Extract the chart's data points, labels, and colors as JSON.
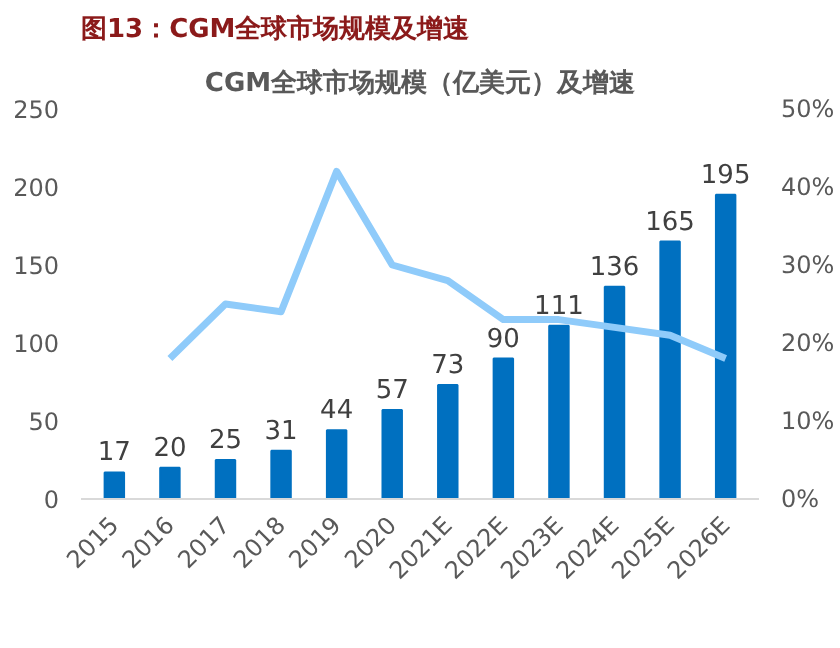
{
  "chart_data": {
    "type": "bar",
    "title": "图13：CGM全球市场规模及增速",
    "subtitle": "CGM全球市场规模（亿美元）及增速",
    "categories": [
      "2015",
      "2016",
      "2017",
      "2018",
      "2019",
      "2020",
      "2021E",
      "2022E",
      "2023E",
      "2024E",
      "2025E",
      "2026E"
    ],
    "series": [
      {
        "color": "#0070c0",
        "data_labels": true,
        "values": [
          17,
          20,
          25,
          31,
          44,
          57,
          73,
          90,
          111,
          136,
          165,
          195
        ]
      },
      {
        "type": "line",
        "axis": "y2",
        "color": "#8fcbfa",
        "values": [
          null,
          18,
          25,
          24,
          42,
          30,
          28,
          23,
          23,
          22,
          21,
          18
        ]
      }
    ],
    "ylim": [
      0,
      250
    ],
    "yticks": [
      0,
      50,
      100,
      150,
      200,
      250
    ],
    "y2lim": [
      0,
      50
    ],
    "y2ticks": [
      {
        "value": 0,
        "label": "0%"
      },
      {
        "value": 10,
        "label": "10%"
      },
      {
        "value": 20,
        "label": "20%"
      },
      {
        "value": 30,
        "label": "30%"
      },
      {
        "value": 40,
        "label": "40%"
      },
      {
        "value": 50,
        "label": "50%"
      }
    ],
    "grid": false,
    "marker": "none",
    "line_style": "solid"
  }
}
